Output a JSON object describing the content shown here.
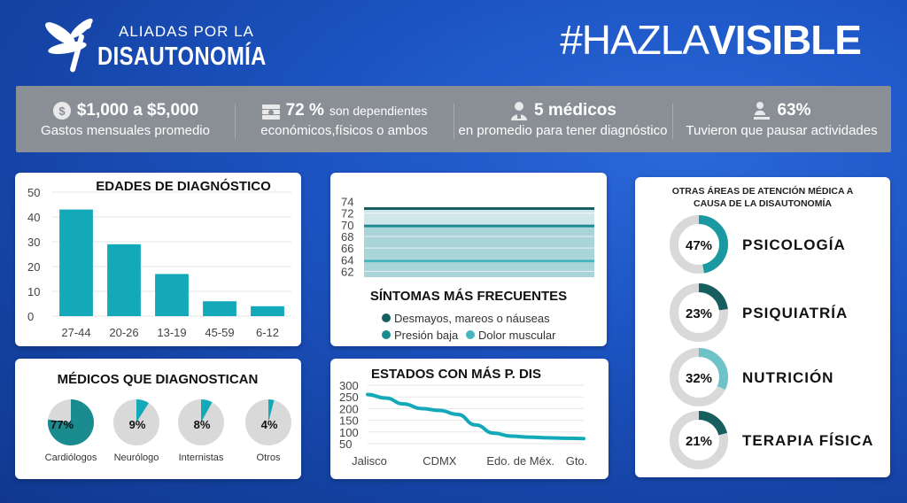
{
  "header": {
    "logo_top": "ALIADAS POR LA",
    "logo_bottom": "DISAUTONOMÍA",
    "hashtag_light": "#HAZLA",
    "hashtag_bold": "VISIBLE"
  },
  "stats": [
    {
      "icon": "coin-icon",
      "big": "$1,000 a $5,000",
      "small": "",
      "line2": "Gastos mensuales promedio"
    },
    {
      "icon": "money-stack-icon",
      "big": "72 %",
      "small": "son dependientes",
      "line2": "económicos,físicos o ambos"
    },
    {
      "icon": "doctor-icon",
      "big": "5 médicos",
      "small": "",
      "line2": "en promedio para tener diagnóstico"
    },
    {
      "icon": "person-pause-icon",
      "big": "63%",
      "small": "",
      "line2": "Tuvieron que pausar actividades"
    }
  ],
  "colors": {
    "teal": "#14a9b8",
    "dark_teal": "#175f5f",
    "mid_teal": "#1a8b8f",
    "light_teal": "#47b7be",
    "soft_teal": "#6fc3c8",
    "grey": "#d9d9d9"
  },
  "chart_data": [
    {
      "type": "bar",
      "title": "EDADES DE DIAGNÓSTICO",
      "categories": [
        "27-44",
        "20-26",
        "13-19",
        "45-59",
        "6-12"
      ],
      "values": [
        43,
        29,
        17,
        6,
        4
      ],
      "ylim": [
        0,
        50
      ],
      "yticks": [
        "0",
        "10",
        "20",
        "30",
        "40",
        "50"
      ],
      "grid": true
    },
    {
      "type": "area",
      "title": "SÍNTOMAS MÁS FRECUENTES",
      "yticks": [
        "62",
        "64",
        "66",
        "68",
        "70",
        "72",
        "74"
      ],
      "ylim": [
        61,
        75
      ],
      "series": [
        {
          "name": "Desmayos, mareos o náuseas",
          "value": 72.8
        },
        {
          "name": "Presión baja",
          "value": 69.8
        },
        {
          "name": "Dolor muscular",
          "value": 63.8
        }
      ]
    },
    {
      "type": "line",
      "title": "ESTADOS CON MÁS P. DIS",
      "categories": [
        "Jalisco",
        "CDMX",
        "Edo. de Méx.",
        "Gto."
      ],
      "x": [
        0,
        0.25,
        0.5,
        0.75,
        1,
        1.25,
        1.5,
        1.75,
        2,
        2.25,
        2.5,
        2.75,
        3
      ],
      "values": [
        260,
        245,
        220,
        200,
        192,
        175,
        130,
        95,
        82,
        78,
        75,
        73,
        72
      ],
      "ylim": [
        50,
        300
      ],
      "yticks": [
        "50",
        "100",
        "150",
        "200",
        "250",
        "300"
      ],
      "grid": true
    },
    {
      "type": "pie",
      "title": "MÉDICOS QUE DIAGNOSTICAN",
      "items": [
        {
          "label": "Cardiólogos",
          "percent": 77,
          "text": "77%"
        },
        {
          "label": "Neurólogo",
          "percent": 9,
          "text": "9%"
        },
        {
          "label": "Internistas",
          "percent": 8,
          "text": "8%"
        },
        {
          "label": "Otros",
          "percent": 4,
          "text": "4%"
        }
      ]
    },
    {
      "type": "donut",
      "title": "OTRAS ÁREAS DE ATENCIÓN MÉDICA A CAUSA DE LA DISAUTONOMÍA",
      "items": [
        {
          "label": "PSICOLOGÍA",
          "percent": 47,
          "text": "47%",
          "color": "#1a9aa0"
        },
        {
          "label": "PSIQUIATRÍA",
          "percent": 23,
          "text": "23%",
          "color": "#175f5f"
        },
        {
          "label": "NUTRICIÓN",
          "percent": 32,
          "text": "32%",
          "color": "#6fc3c8"
        },
        {
          "label": "TERAPIA FÍSICA",
          "percent": 21,
          "text": "21%",
          "color": "#175f5f"
        }
      ]
    }
  ]
}
